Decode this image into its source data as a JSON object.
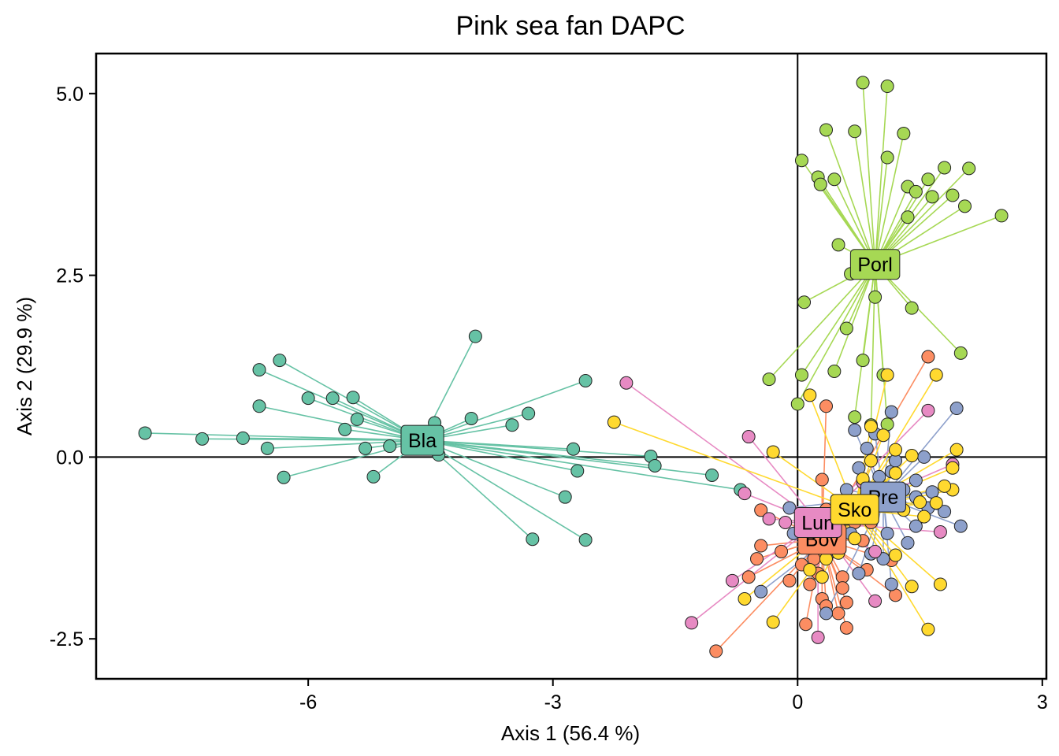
{
  "chart_data": {
    "type": "scatter",
    "title": "Pink sea fan DAPC",
    "xlabel": "Axis 1 (56.4 %)",
    "ylabel": "Axis 2 (29.9 %)",
    "xlim": [
      -8.6,
      3.05
    ],
    "ylim": [
      -3.05,
      5.55
    ],
    "x_ticks": [
      -6,
      -3,
      0,
      3
    ],
    "x_tick_labels": [
      "-6",
      "-3",
      "0",
      "3"
    ],
    "y_ticks": [
      -2.5,
      0.0,
      2.5,
      5.0
    ],
    "y_tick_labels": [
      "-2.5",
      "0.0",
      "2.5",
      "5.0"
    ],
    "reference_lines": {
      "x": 0,
      "y": 0
    },
    "grid": false,
    "legend": "none",
    "series": [
      {
        "name": "Bla",
        "color": "#66c2a5",
        "centroid": [
          -4.6,
          0.23
        ],
        "points": [
          [
            -8.0,
            0.33
          ],
          [
            -7.3,
            0.25
          ],
          [
            -6.8,
            0.26
          ],
          [
            -6.6,
            1.2
          ],
          [
            -6.35,
            1.33
          ],
          [
            -6.0,
            0.81
          ],
          [
            -5.7,
            0.81
          ],
          [
            -5.45,
            0.82
          ],
          [
            -5.4,
            0.52
          ],
          [
            -5.55,
            0.38
          ],
          [
            -5.3,
            0.12
          ],
          [
            -6.5,
            0.12
          ],
          [
            -6.3,
            -0.28
          ],
          [
            -5.2,
            -0.27
          ],
          [
            -4.4,
            0.03
          ],
          [
            -4.45,
            0.47
          ],
          [
            -4.0,
            0.53
          ],
          [
            -3.95,
            1.66
          ],
          [
            -3.5,
            0.44
          ],
          [
            -3.3,
            0.6
          ],
          [
            -2.6,
            1.05
          ],
          [
            -2.75,
            0.11
          ],
          [
            -2.7,
            -0.19
          ],
          [
            -2.85,
            -0.55
          ],
          [
            -3.25,
            -1.13
          ],
          [
            -2.6,
            -1.14
          ],
          [
            -1.8,
            0.01
          ],
          [
            -1.75,
            -0.12
          ],
          [
            -1.05,
            -0.25
          ],
          [
            -0.7,
            -0.45
          ],
          [
            -6.6,
            0.7
          ],
          [
            -5.0,
            0.15
          ]
        ]
      },
      {
        "name": "Porl",
        "color": "#a6d854",
        "centroid": [
          0.95,
          2.65
        ],
        "points": [
          [
            0.8,
            5.15
          ],
          [
            1.1,
            5.1
          ],
          [
            0.35,
            4.5
          ],
          [
            0.7,
            4.48
          ],
          [
            1.3,
            4.45
          ],
          [
            0.05,
            4.08
          ],
          [
            1.1,
            4.12
          ],
          [
            0.25,
            3.85
          ],
          [
            0.45,
            3.82
          ],
          [
            0.28,
            3.75
          ],
          [
            1.35,
            3.72
          ],
          [
            1.45,
            3.65
          ],
          [
            1.6,
            3.82
          ],
          [
            1.8,
            3.98
          ],
          [
            2.1,
            3.97
          ],
          [
            1.65,
            3.58
          ],
          [
            1.9,
            3.6
          ],
          [
            2.05,
            3.45
          ],
          [
            1.35,
            3.3
          ],
          [
            2.5,
            3.32
          ],
          [
            0.5,
            2.92
          ],
          [
            0.65,
            2.52
          ],
          [
            0.95,
            2.2
          ],
          [
            1.4,
            2.05
          ],
          [
            0.08,
            2.13
          ],
          [
            0.6,
            1.77
          ],
          [
            2.0,
            1.43
          ],
          [
            0.05,
            1.13
          ],
          [
            0.45,
            1.18
          ],
          [
            0.8,
            1.33
          ],
          [
            -0.35,
            1.07
          ],
          [
            0.0,
            0.73
          ],
          [
            0.7,
            0.55
          ],
          [
            1.05,
            1.13
          ],
          [
            0.9,
            0.44
          ],
          [
            1.1,
            0.45
          ]
        ]
      },
      {
        "name": "Bov",
        "color": "#fc8d62",
        "centroid": [
          0.3,
          -1.13
        ],
        "points": [
          [
            -1.0,
            -2.67
          ],
          [
            -0.6,
            -1.65
          ],
          [
            -0.45,
            -1.22
          ],
          [
            -0.45,
            -0.73
          ],
          [
            -0.2,
            -1.3
          ],
          [
            0.35,
            -0.72
          ],
          [
            0.3,
            -0.31
          ],
          [
            0.35,
            0.7
          ],
          [
            0.25,
            -1.07
          ],
          [
            0.5,
            -2.15
          ],
          [
            0.1,
            -2.3
          ],
          [
            0.55,
            -1.65
          ],
          [
            0.6,
            -2.0
          ],
          [
            0.6,
            -2.35
          ],
          [
            0.3,
            -1.95
          ],
          [
            0.85,
            -1.55
          ],
          [
            1.2,
            -1.9
          ],
          [
            1.6,
            1.38
          ],
          [
            0.65,
            -0.62
          ],
          [
            0.9,
            -0.9
          ],
          [
            0.05,
            -1.48
          ],
          [
            -0.1,
            -1.7
          ],
          [
            0.15,
            -1.75
          ],
          [
            0.4,
            -1.2
          ],
          [
            0.45,
            -0.95
          ],
          [
            0.8,
            -1.15
          ],
          [
            1.15,
            -1.42
          ],
          [
            0.25,
            -1.6
          ],
          [
            0.55,
            -1.8
          ],
          [
            0.95,
            -0.68
          ],
          [
            -0.5,
            -1.4
          ],
          [
            0.35,
            -2.05
          ],
          [
            0.2,
            -1.4
          ],
          [
            0.7,
            -0.9
          ]
        ]
      },
      {
        "name": "Pre",
        "color": "#8da0cb",
        "centroid": [
          1.05,
          -0.55
        ],
        "points": [
          [
            1.15,
            0.62
          ],
          [
            0.7,
            0.37
          ],
          [
            0.85,
            0.12
          ],
          [
            0.95,
            0.32
          ],
          [
            0.75,
            -0.15
          ],
          [
            1.0,
            -0.27
          ],
          [
            1.3,
            -0.45
          ],
          [
            1.45,
            -0.55
          ],
          [
            1.6,
            -0.7
          ],
          [
            1.95,
            0.67
          ],
          [
            2.0,
            -0.95
          ],
          [
            1.45,
            -0.32
          ],
          [
            0.6,
            -0.45
          ],
          [
            0.5,
            -0.8
          ],
          [
            0.65,
            -1.05
          ],
          [
            0.9,
            -1.33
          ],
          [
            1.15,
            -1.75
          ],
          [
            1.35,
            -1.18
          ],
          [
            1.65,
            -0.48
          ],
          [
            1.8,
            -0.75
          ],
          [
            0.35,
            -2.15
          ],
          [
            -0.1,
            -0.7
          ],
          [
            -0.05,
            -1.05
          ],
          [
            0.25,
            -1.0
          ],
          [
            0.45,
            -1.3
          ],
          [
            0.75,
            -1.6
          ],
          [
            1.05,
            -1.4
          ],
          [
            1.15,
            -0.2
          ],
          [
            -0.45,
            -1.85
          ],
          [
            1.55,
            0.0
          ],
          [
            1.2,
            -0.05
          ],
          [
            1.1,
            -1.05
          ],
          [
            0.1,
            -0.85
          ],
          [
            1.45,
            -0.95
          ]
        ]
      },
      {
        "name": "Lun",
        "color": "#e78ac3",
        "centroid": [
          0.25,
          -0.9
        ],
        "points": [
          [
            -2.1,
            1.02
          ],
          [
            -1.3,
            -2.28
          ],
          [
            -0.8,
            -1.7
          ],
          [
            -0.6,
            0.28
          ],
          [
            -0.65,
            -0.5
          ],
          [
            -0.35,
            -0.85
          ],
          [
            0.25,
            -2.48
          ],
          [
            0.55,
            -0.78
          ],
          [
            0.95,
            -1.98
          ],
          [
            1.6,
            0.64
          ],
          [
            1.75,
            -1.03
          ],
          [
            1.9,
            -0.1
          ],
          [
            0.8,
            -0.35
          ],
          [
            0.5,
            -1.05
          ],
          [
            0.95,
            -1.3
          ],
          [
            0.15,
            -1.25
          ],
          [
            -0.15,
            -0.9
          ],
          [
            1.25,
            -0.62
          ]
        ]
      },
      {
        "name": "Sko",
        "color": "#ffd92f",
        "centroid": [
          0.7,
          -0.72
        ],
        "points": [
          [
            -2.25,
            0.48
          ],
          [
            -0.3,
            0.07
          ],
          [
            0.15,
            0.85
          ],
          [
            1.1,
            1.13
          ],
          [
            1.7,
            1.13
          ],
          [
            1.2,
            0.1
          ],
          [
            1.4,
            0.02
          ],
          [
            1.95,
            0.1
          ],
          [
            0.9,
            -0.05
          ],
          [
            1.2,
            -0.22
          ],
          [
            1.9,
            -0.15
          ],
          [
            1.9,
            -0.45
          ],
          [
            1.7,
            -0.63
          ],
          [
            1.8,
            -0.4
          ],
          [
            1.55,
            -0.82
          ],
          [
            -0.65,
            -1.95
          ],
          [
            -0.3,
            -2.27
          ],
          [
            0.15,
            -1.55
          ],
          [
            0.35,
            -1.4
          ],
          [
            0.7,
            -1.12
          ],
          [
            1.2,
            -1.35
          ],
          [
            1.4,
            -1.78
          ],
          [
            1.75,
            -1.75
          ],
          [
            1.6,
            -2.37
          ],
          [
            0.3,
            -1.65
          ],
          [
            0.5,
            -1.32
          ],
          [
            0.95,
            -0.55
          ],
          [
            1.3,
            -0.73
          ],
          [
            0.8,
            -0.3
          ],
          [
            0.9,
            0.42
          ],
          [
            1.05,
            0.3
          ],
          [
            0.6,
            -0.85
          ],
          [
            1.5,
            -0.62
          ],
          [
            0.2,
            -0.8
          ]
        ]
      }
    ]
  }
}
